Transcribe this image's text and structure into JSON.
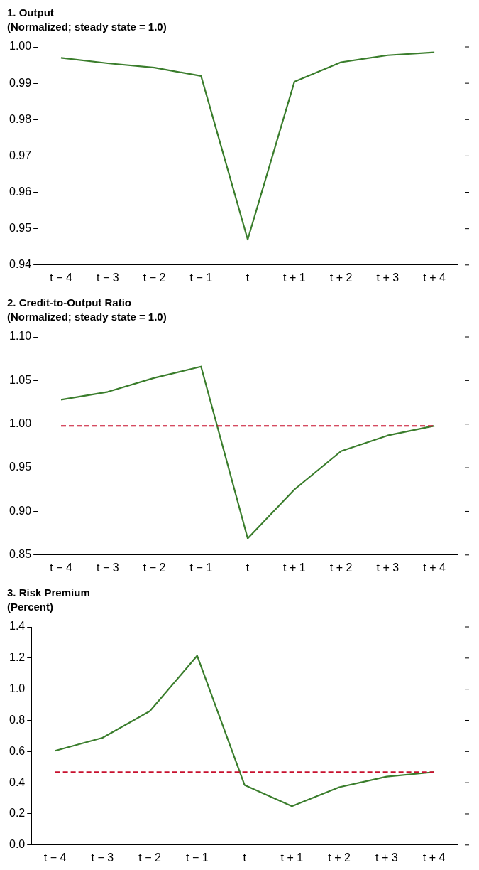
{
  "chart_data": [
    {
      "type": "line",
      "title": "1. Output",
      "subtitle": "(Normalized; steady state = 1.0)",
      "categories": [
        "t − 4",
        "t − 3",
        "t − 2",
        "t − 1",
        "t",
        "t + 1",
        "t + 2",
        "t + 3",
        "t + 4"
      ],
      "series": [
        {
          "color": "#3a7d2c",
          "values": [
            0.997,
            0.9955,
            0.9943,
            0.992,
            0.947,
            0.9904,
            0.9958,
            0.9977,
            0.9985
          ]
        }
      ],
      "ylim": [
        0.94,
        1.0
      ],
      "yticks": [
        {
          "value": 0.94,
          "label": "0.94"
        },
        {
          "value": 0.95,
          "label": "0.95"
        },
        {
          "value": 0.96,
          "label": "0.96"
        },
        {
          "value": 0.97,
          "label": "0.97"
        },
        {
          "value": 0.98,
          "label": "0.98"
        },
        {
          "value": 0.99,
          "label": "0.99"
        },
        {
          "value": 1.0,
          "label": "1.00"
        }
      ],
      "grid": false,
      "legend": false,
      "marker": "none",
      "line_style": "solid"
    },
    {
      "type": "line",
      "title": "2. Credit-to-Output Ratio",
      "subtitle": "(Normalized; steady state = 1.0)",
      "categories": [
        "t − 4",
        "t − 3",
        "t − 2",
        "t − 1",
        "t",
        "t + 1",
        "t + 2",
        "t + 3",
        "t + 4"
      ],
      "series": [
        {
          "color": "#3a7d2c",
          "values": [
            1.028,
            1.037,
            1.053,
            1.066,
            0.869,
            0.925,
            0.969,
            0.987,
            0.998
          ]
        }
      ],
      "ylim": [
        0.85,
        1.1
      ],
      "yticks": [
        {
          "value": 0.85,
          "label": "0.85"
        },
        {
          "value": 0.9,
          "label": "0.90"
        },
        {
          "value": 0.95,
          "label": "0.95"
        },
        {
          "value": 1.0,
          "label": "1.00"
        },
        {
          "value": 1.05,
          "label": "1.05"
        },
        {
          "value": 1.1,
          "label": "1.10"
        }
      ],
      "ref_lines": [
        {
          "axis": "y",
          "value": 0.998,
          "color": "#c8102e",
          "line_style": "dashed"
        }
      ],
      "grid": false,
      "legend": false,
      "marker": "none",
      "line_style": "solid"
    },
    {
      "type": "line",
      "title": "3. Risk Premium",
      "subtitle": "(Percent)",
      "categories": [
        "t − 4",
        "t − 3",
        "t − 2",
        "t − 1",
        "t",
        "t + 1",
        "t + 2",
        "t + 3",
        "t + 4"
      ],
      "series": [
        {
          "color": "#3a7d2c",
          "values": [
            0.605,
            0.688,
            0.859,
            1.215,
            0.385,
            0.249,
            0.371,
            0.439,
            0.468
          ]
        }
      ],
      "ylim": [
        0,
        1.4
      ],
      "yticks": [
        {
          "value": 0,
          "label": "0.0"
        },
        {
          "value": 0.2,
          "label": "0.2"
        },
        {
          "value": 0.4,
          "label": "0.4"
        },
        {
          "value": 0.6,
          "label": "0.6"
        },
        {
          "value": 0.8,
          "label": "0.8"
        },
        {
          "value": 1.0,
          "label": "1.0"
        },
        {
          "value": 1.2,
          "label": "1.2"
        },
        {
          "value": 1.4,
          "label": "1.4"
        }
      ],
      "ref_lines": [
        {
          "axis": "y",
          "value": 0.468,
          "color": "#c8102e",
          "line_style": "dashed"
        }
      ],
      "grid": false,
      "legend": false,
      "marker": "none",
      "line_style": "solid"
    }
  ]
}
